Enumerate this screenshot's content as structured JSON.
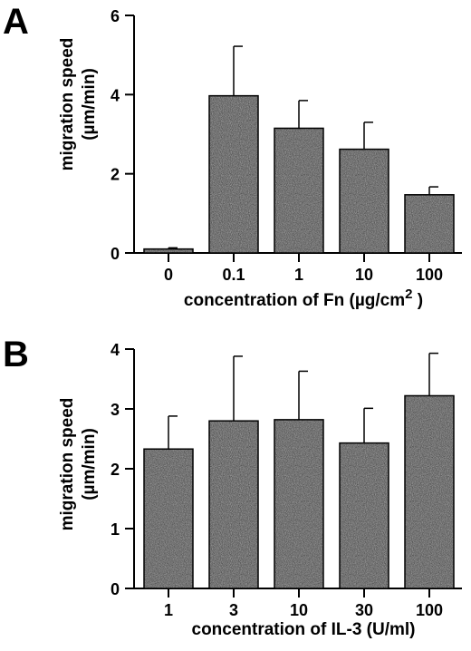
{
  "chart_data": [
    {
      "type": "bar",
      "panel_label": "A",
      "categories": [
        "0",
        "0.1",
        "1",
        "10",
        "100"
      ],
      "values": [
        0.1,
        3.97,
        3.15,
        2.62,
        1.47
      ],
      "error_plus": [
        0.03,
        1.25,
        0.7,
        0.68,
        0.2
      ],
      "ylim": [
        0,
        6
      ],
      "yticks": [
        0,
        2,
        4,
        6
      ],
      "ylabel_line1": "migration   speed",
      "ylabel_line2": "(µm/min)",
      "xlabel_main": "concentration  of  Fn  (µg/cm",
      "xlabel_sup": "2",
      "xlabel_tail": " )"
    },
    {
      "type": "bar",
      "panel_label": "B",
      "categories": [
        "1",
        "3",
        "10",
        "30",
        "100"
      ],
      "values": [
        2.33,
        2.8,
        2.82,
        2.43,
        3.22
      ],
      "error_plus": [
        0.55,
        1.08,
        0.81,
        0.58,
        0.71
      ],
      "ylim": [
        0,
        4
      ],
      "yticks": [
        0,
        1,
        2,
        3,
        4
      ],
      "ylabel_line1": "migration   speed",
      "ylabel_line2": "(µm/min)",
      "xlabel_main": "concentration  of  IL-3  (U/ml)",
      "xlabel_sup": "",
      "xlabel_tail": ""
    }
  ]
}
